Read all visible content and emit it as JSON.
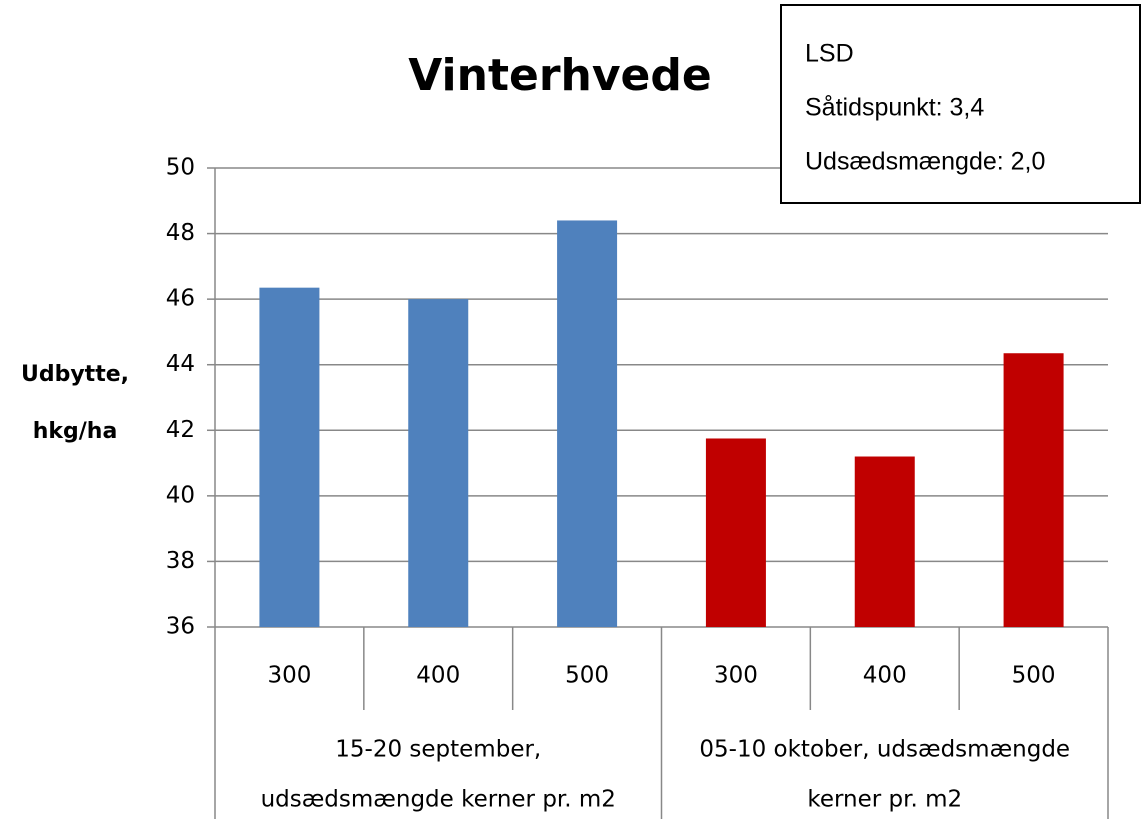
{
  "chart_data": {
    "type": "bar",
    "title": "Vinterhvede",
    "y_label": [
      "Udbytte,",
      "hkg/ha"
    ],
    "categories": [
      "300",
      "400",
      "500",
      "300",
      "400",
      "500"
    ],
    "values": [
      46.35,
      46.0,
      48.4,
      41.75,
      41.2,
      44.35
    ],
    "colors": [
      "#4f81bd",
      "#4f81bd",
      "#4f81bd",
      "#c00000",
      "#c00000",
      "#c00000"
    ],
    "groups": [
      [
        "15-20 september,",
        "udsædsmængde kerner pr. m2"
      ],
      [
        "05-10 oktober, udsædsmængde",
        "kerner pr. m2"
      ]
    ],
    "annotation": [
      "LSD",
      "Såtidspunkt: 3,4",
      "Udsædsmængde: 2,0"
    ],
    "ylim": [
      36,
      50
    ],
    "yticks": [
      36,
      38,
      40,
      42,
      44,
      46,
      48,
      50
    ],
    "grid": true
  }
}
